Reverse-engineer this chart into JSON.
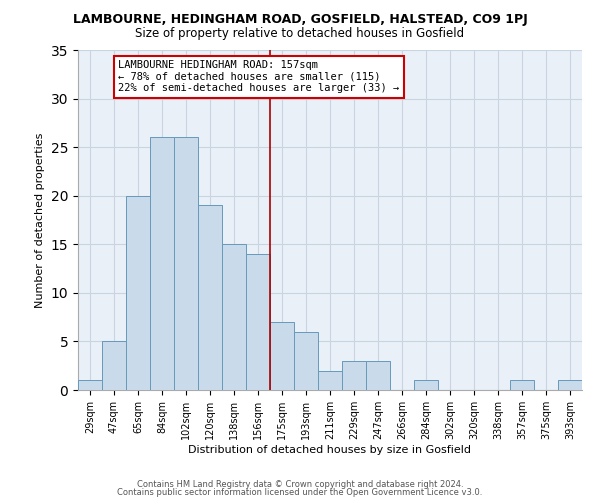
{
  "title": "LAMBOURNE, HEDINGHAM ROAD, GOSFIELD, HALSTEAD, CO9 1PJ",
  "subtitle": "Size of property relative to detached houses in Gosfield",
  "xlabel": "Distribution of detached houses by size in Gosfield",
  "ylabel": "Number of detached properties",
  "bar_labels": [
    "29sqm",
    "47sqm",
    "65sqm",
    "84sqm",
    "102sqm",
    "120sqm",
    "138sqm",
    "156sqm",
    "175sqm",
    "193sqm",
    "211sqm",
    "229sqm",
    "247sqm",
    "266sqm",
    "284sqm",
    "302sqm",
    "320sqm",
    "338sqm",
    "357sqm",
    "375sqm",
    "393sqm"
  ],
  "bar_values": [
    1,
    5,
    20,
    26,
    26,
    19,
    15,
    14,
    7,
    6,
    2,
    3,
    3,
    0,
    1,
    0,
    0,
    0,
    1,
    0,
    1
  ],
  "bar_color": "#c9daea",
  "bar_edge_color": "#6699bb",
  "vline_color": "#aa0000",
  "ylim": [
    0,
    35
  ],
  "yticks": [
    0,
    5,
    10,
    15,
    20,
    25,
    30,
    35
  ],
  "annotation_title": "LAMBOURNE HEDINGHAM ROAD: 157sqm",
  "annotation_line1": "← 78% of detached houses are smaller (115)",
  "annotation_line2": "22% of semi-detached houses are larger (33) →",
  "annotation_box_color": "#ffffff",
  "annotation_box_edge": "#cc0000",
  "footer1": "Contains HM Land Registry data © Crown copyright and database right 2024.",
  "footer2": "Contains public sector information licensed under the Open Government Licence v3.0.",
  "bg_color": "#ffffff",
  "grid_color": "#c8d4e0"
}
